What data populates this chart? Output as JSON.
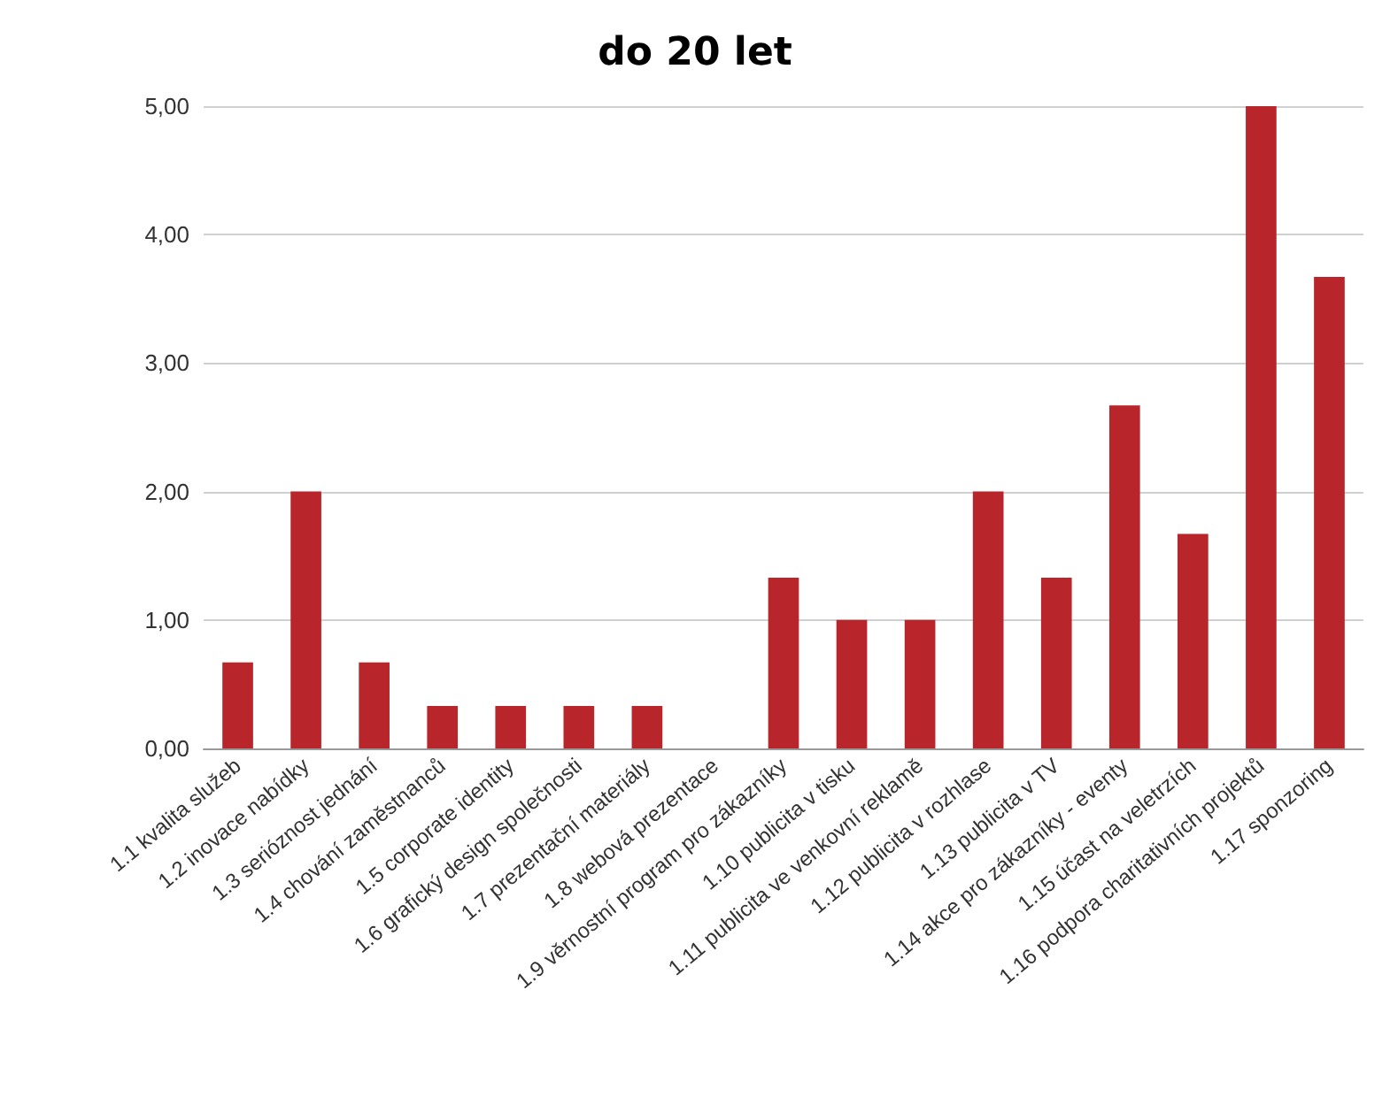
{
  "chart_data": {
    "type": "bar",
    "title": "do 20 let",
    "categories": [
      "1.1 kvalita služeb",
      "1.2 inovace nabídky",
      "1.3 serióznost jednání",
      "1.4 chování zaměstnanců",
      "1.5 corporate identity",
      "1.6 grafický design společnosti",
      "1.7 prezentační materiály",
      "1.8 webová prezentace",
      "1.9 věrnostní program pro zákazníky",
      "1.10 publicita v tisku",
      "1.11 publicita ve venkovní reklamě",
      "1.12 publicita v rozhlase",
      "1.13 publicita v TV",
      "1.14 akce pro zákazníky - eventy",
      "1.15 účast na veletrzích",
      "1.16 podpora charitativních projektů",
      "1.17 sponzoring"
    ],
    "values": [
      0.67,
      2,
      0.67,
      0.33,
      0.33,
      0.33,
      0.33,
      0,
      1.33,
      1,
      1,
      2,
      1.33,
      2.67,
      1.67,
      5,
      3.67
    ],
    "color": "#b8262b",
    "ylim": [
      0,
      5
    ],
    "yticks": [
      {
        "value": 0,
        "label": "0,00"
      },
      {
        "value": 1,
        "label": "1,00"
      },
      {
        "value": 2,
        "label": "2,00"
      },
      {
        "value": 3,
        "label": "3,00"
      },
      {
        "value": 4,
        "label": "4,00"
      },
      {
        "value": 5,
        "label": "5,00"
      }
    ],
    "grid": true
  }
}
